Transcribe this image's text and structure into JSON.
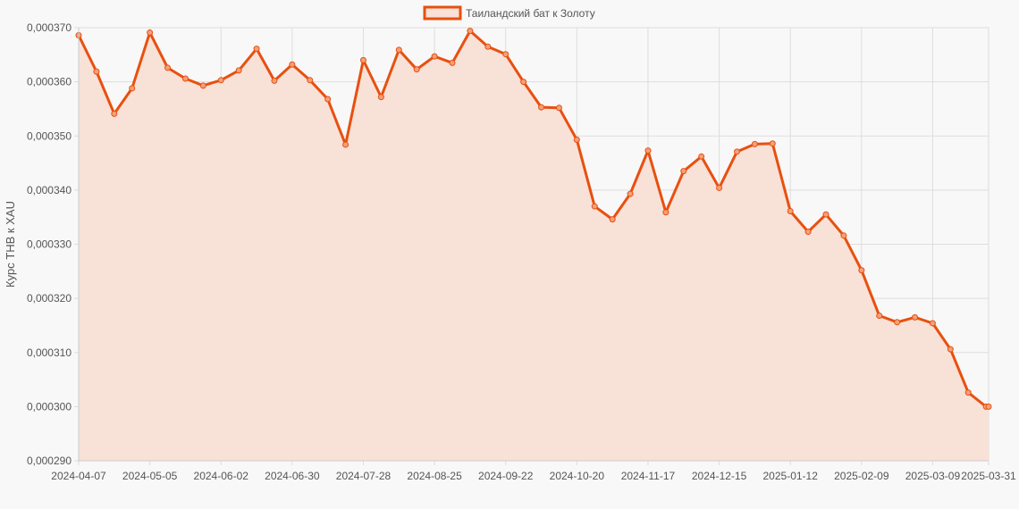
{
  "chart_data": {
    "type": "area",
    "ylabel": "Курс THB к XAU",
    "ylim": [
      0.00029,
      0.00037
    ],
    "y_ticks": [
      "0,000290",
      "0,000300",
      "0,000310",
      "0,000320",
      "0,000330",
      "0,000340",
      "0,000350",
      "0,000360",
      "0,000370"
    ],
    "x_tick_labels": [
      "2024-04-07",
      "2024-05-05",
      "2024-06-02",
      "2024-06-30",
      "2024-07-28",
      "2024-08-25",
      "2024-09-22",
      "2024-10-20",
      "2024-11-17",
      "2024-12-15",
      "2025-01-12",
      "2025-02-09",
      "2025-03-09",
      "2025-03-31"
    ],
    "x": [
      "2024-04-07",
      "2024-04-14",
      "2024-04-21",
      "2024-04-28",
      "2024-05-05",
      "2024-05-12",
      "2024-05-19",
      "2024-05-26",
      "2024-06-02",
      "2024-06-09",
      "2024-06-16",
      "2024-06-23",
      "2024-06-30",
      "2024-07-07",
      "2024-07-14",
      "2024-07-21",
      "2024-07-28",
      "2024-08-04",
      "2024-08-11",
      "2024-08-18",
      "2024-08-25",
      "2024-09-01",
      "2024-09-08",
      "2024-09-15",
      "2024-09-22",
      "2024-09-29",
      "2024-10-06",
      "2024-10-13",
      "2024-10-20",
      "2024-10-27",
      "2024-11-03",
      "2024-11-10",
      "2024-11-17",
      "2024-11-24",
      "2024-12-01",
      "2024-12-08",
      "2024-12-15",
      "2024-12-22",
      "2024-12-29",
      "2025-01-05",
      "2025-01-12",
      "2025-01-19",
      "2025-01-26",
      "2025-02-02",
      "2025-02-09",
      "2025-02-16",
      "2025-02-23",
      "2025-03-02",
      "2025-03-09",
      "2025-03-16",
      "2025-03-23",
      "2025-03-30",
      "2025-03-31"
    ],
    "series": [
      {
        "name": "Таиландский бат к Золоту",
        "color": "#e8500f",
        "fill": "#f8e1d7",
        "values": [
          0.0003686,
          0.0003619,
          0.0003541,
          0.0003588,
          0.0003691,
          0.0003626,
          0.0003606,
          0.0003593,
          0.0003603,
          0.0003621,
          0.0003661,
          0.0003602,
          0.0003632,
          0.0003603,
          0.0003568,
          0.0003484,
          0.000364,
          0.0003572,
          0.0003659,
          0.0003623,
          0.0003647,
          0.0003635,
          0.0003694,
          0.0003665,
          0.0003651,
          0.00036,
          0.0003553,
          0.0003552,
          0.0003493,
          0.000337,
          0.0003346,
          0.0003393,
          0.0003473,
          0.0003359,
          0.0003435,
          0.0003462,
          0.0003404,
          0.0003471,
          0.0003485,
          0.0003486,
          0.0003361,
          0.0003323,
          0.0003355,
          0.0003316,
          0.0003252,
          0.0003168,
          0.0003156,
          0.0003165,
          0.0003154,
          0.0003106,
          0.0003026,
          0.0003,
          0.0003
        ]
      }
    ],
    "grid": true,
    "legend_position": "top-center"
  }
}
